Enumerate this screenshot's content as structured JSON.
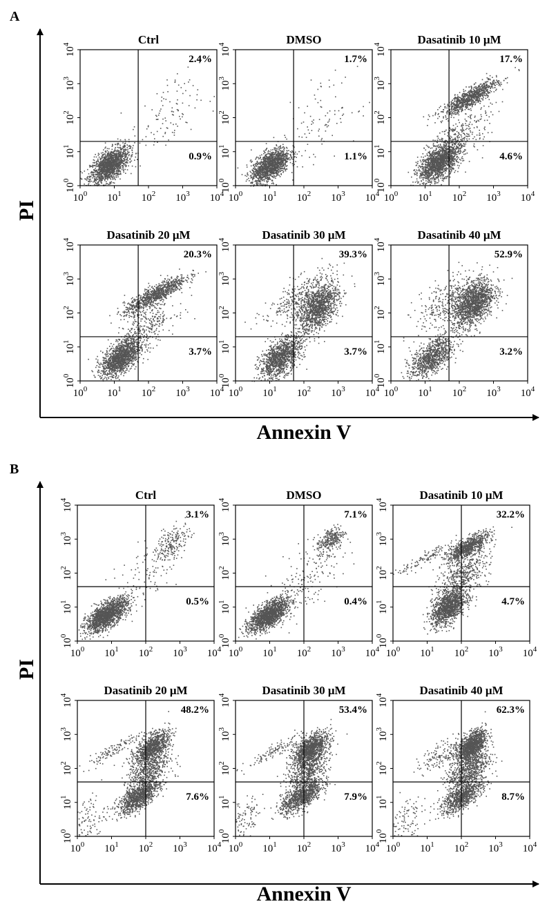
{
  "figure": {
    "panels": [
      {
        "letter": "A",
        "ylabel": "PI",
        "xlabel": "Annexin V",
        "plots": [
          {
            "title": "Ctrl",
            "upper_right": "2.4%",
            "lower_right": "0.9%"
          },
          {
            "title": "DMSO",
            "upper_right": "1.7%",
            "lower_right": "1.1%"
          },
          {
            "title": "Dasatinib 10 μM",
            "upper_right": "17.%",
            "lower_right": "4.6%"
          },
          {
            "title": "Dasatinib 20 μM",
            "upper_right": "20.3%",
            "lower_right": "3.7%"
          },
          {
            "title": "Dasatinib 30 μM",
            "upper_right": "39.3%",
            "lower_right": "3.7%"
          },
          {
            "title": "Dasatinib 40 μM",
            "upper_right": "52.9%",
            "lower_right": "3.2%"
          }
        ]
      },
      {
        "letter": "B",
        "ylabel": "PI",
        "xlabel": "Annexin V",
        "plots": [
          {
            "title": "Ctrl",
            "upper_right": "3.1%",
            "lower_right": "0.5%"
          },
          {
            "title": "DMSO",
            "upper_right": "7.1%",
            "lower_right": "0.4%"
          },
          {
            "title": "Dasatinib 10 μM",
            "upper_right": "32.2%",
            "lower_right": "4.7%"
          },
          {
            "title": "Dasatinib 20 μM",
            "upper_right": "48.2%",
            "lower_right": "7.6%"
          },
          {
            "title": "Dasatinib 30 μM",
            "upper_right": "53.4%",
            "lower_right": "7.9%"
          },
          {
            "title": "Dasatinib 40 μM",
            "upper_right": "62.3%",
            "lower_right": "8.7%"
          }
        ]
      }
    ]
  },
  "chart_data": [
    {
      "type": "scatter",
      "panel": "A",
      "title": "Ctrl",
      "x_scale": "log",
      "y_scale": "log",
      "xlim": [
        1,
        10000
      ],
      "ylim": [
        1,
        10000
      ],
      "x_ticks": [
        "10^0",
        "10^1",
        "10^2",
        "10^3",
        "10^4"
      ],
      "y_ticks": [
        "10^0",
        "10^1",
        "10^2",
        "10^3",
        "10^4"
      ],
      "quadrant_gate": {
        "x": 50,
        "y": 20
      },
      "upper_right_percent": 2.4,
      "lower_right_percent": 0.9,
      "clusters": [
        {
          "center": [
            7,
            4
          ],
          "spread": [
            0.28,
            0.25
          ],
          "n": 1500
        },
        {
          "center": [
            300,
            100
          ],
          "spread": [
            0.5,
            0.6
          ],
          "n": 110
        }
      ],
      "dot_color": "#555555"
    },
    {
      "type": "scatter",
      "panel": "A",
      "title": "DMSO",
      "x_scale": "log",
      "y_scale": "log",
      "xlim": [
        1,
        10000
      ],
      "ylim": [
        1,
        10000
      ],
      "x_ticks": [
        "10^0",
        "10^1",
        "10^2",
        "10^3",
        "10^4"
      ],
      "y_ticks": [
        "10^0",
        "10^1",
        "10^2",
        "10^3",
        "10^4"
      ],
      "quadrant_gate": {
        "x": 50,
        "y": 20
      },
      "upper_right_percent": 1.7,
      "lower_right_percent": 1.1,
      "clusters": [
        {
          "center": [
            10,
            4
          ],
          "spread": [
            0.28,
            0.24
          ],
          "n": 1400
        },
        {
          "center": [
            300,
            80
          ],
          "spread": [
            0.55,
            0.6
          ],
          "n": 100
        }
      ],
      "dot_color": "#555555"
    },
    {
      "type": "scatter",
      "panel": "A",
      "title": "Dasatinib 10 μM",
      "x_scale": "log",
      "y_scale": "log",
      "xlim": [
        1,
        10000
      ],
      "ylim": [
        1,
        10000
      ],
      "x_ticks": [
        "10^0",
        "10^1",
        "10^2",
        "10^3",
        "10^4"
      ],
      "y_ticks": [
        "10^0",
        "10^1",
        "10^2",
        "10^3",
        "10^4"
      ],
      "quadrant_gate": {
        "x": 50,
        "y": 20
      },
      "upper_right_percent": 17.0,
      "lower_right_percent": 4.6,
      "clusters": [
        {
          "center": [
            25,
            5
          ],
          "spread": [
            0.3,
            0.26
          ],
          "n": 1500
        },
        {
          "center": [
            200,
            400
          ],
          "spread": [
            0.4,
            0.15
          ],
          "n": 900
        },
        {
          "center": [
            100,
            30
          ],
          "spread": [
            0.45,
            0.4
          ],
          "n": 300
        }
      ],
      "dot_color": "#555555"
    },
    {
      "type": "scatter",
      "panel": "A",
      "title": "Dasatinib 20 μM",
      "x_scale": "log",
      "y_scale": "log",
      "xlim": [
        1,
        10000
      ],
      "ylim": [
        1,
        10000
      ],
      "x_ticks": [
        "10^0",
        "10^1",
        "10^2",
        "10^3",
        "10^4"
      ],
      "y_ticks": [
        "10^0",
        "10^1",
        "10^2",
        "10^3",
        "10^4"
      ],
      "quadrant_gate": {
        "x": 50,
        "y": 20
      },
      "upper_right_percent": 20.3,
      "lower_right_percent": 3.7,
      "clusters": [
        {
          "center": [
            15,
            5
          ],
          "spread": [
            0.28,
            0.25
          ],
          "n": 1400
        },
        {
          "center": [
            150,
            350
          ],
          "spread": [
            0.45,
            0.15
          ],
          "n": 900
        },
        {
          "center": [
            80,
            40
          ],
          "spread": [
            0.45,
            0.35
          ],
          "n": 300
        }
      ],
      "dot_color": "#555555"
    },
    {
      "type": "scatter",
      "panel": "A",
      "title": "Dasatinib 30 μM",
      "x_scale": "log",
      "y_scale": "log",
      "xlim": [
        1,
        10000
      ],
      "ylim": [
        1,
        10000
      ],
      "x_ticks": [
        "10^0",
        "10^1",
        "10^2",
        "10^3",
        "10^4"
      ],
      "y_ticks": [
        "10^0",
        "10^1",
        "10^2",
        "10^3",
        "10^4"
      ],
      "quadrant_gate": {
        "x": 50,
        "y": 20
      },
      "upper_right_percent": 39.3,
      "lower_right_percent": 3.7,
      "clusters": [
        {
          "center": [
            20,
            5
          ],
          "spread": [
            0.3,
            0.28
          ],
          "n": 1200
        },
        {
          "center": [
            250,
            150
          ],
          "spread": [
            0.3,
            0.35
          ],
          "n": 1300
        },
        {
          "center": [
            60,
            300
          ],
          "spread": [
            0.5,
            0.3
          ],
          "n": 250
        }
      ],
      "dot_color": "#555555"
    },
    {
      "type": "scatter",
      "panel": "A",
      "title": "Dasatinib 40 μM",
      "x_scale": "log",
      "y_scale": "log",
      "xlim": [
        1,
        10000
      ],
      "ylim": [
        1,
        10000
      ],
      "x_ticks": [
        "10^0",
        "10^1",
        "10^2",
        "10^3",
        "10^4"
      ],
      "y_ticks": [
        "10^0",
        "10^1",
        "10^2",
        "10^3",
        "10^4"
      ],
      "quadrant_gate": {
        "x": 50,
        "y": 20
      },
      "upper_right_percent": 52.9,
      "lower_right_percent": 3.2,
      "clusters": [
        {
          "center": [
            15,
            5
          ],
          "spread": [
            0.3,
            0.26
          ],
          "n": 900
        },
        {
          "center": [
            250,
            200
          ],
          "spread": [
            0.3,
            0.35
          ],
          "n": 1500
        },
        {
          "center": [
            40,
            200
          ],
          "spread": [
            0.45,
            0.4
          ],
          "n": 300
        }
      ],
      "dot_color": "#555555"
    },
    {
      "type": "scatter",
      "panel": "B",
      "title": "Ctrl",
      "x_scale": "log",
      "y_scale": "log",
      "xlim": [
        1,
        10000
      ],
      "ylim": [
        1,
        10000
      ],
      "x_ticks": [
        "10^0",
        "10^1",
        "10^2",
        "10^3",
        "10^4"
      ],
      "y_ticks": [
        "10^0",
        "10^1",
        "10^2",
        "10^3",
        "10^4"
      ],
      "quadrant_gate": {
        "x": 100,
        "y": 40
      },
      "upper_right_percent": 3.1,
      "lower_right_percent": 0.5,
      "clusters": [
        {
          "center": [
            7,
            6
          ],
          "spread": [
            0.3,
            0.2
          ],
          "n": 1600
        },
        {
          "center": [
            600,
            800
          ],
          "spread": [
            0.25,
            0.25
          ],
          "n": 200
        },
        {
          "center": [
            100,
            80
          ],
          "spread": [
            0.5,
            0.5
          ],
          "n": 100
        }
      ],
      "dot_color": "#555555"
    },
    {
      "type": "scatter",
      "panel": "B",
      "title": "DMSO",
      "x_scale": "log",
      "y_scale": "log",
      "xlim": [
        1,
        10000
      ],
      "ylim": [
        1,
        10000
      ],
      "x_ticks": [
        "10^0",
        "10^1",
        "10^2",
        "10^3",
        "10^4"
      ],
      "y_ticks": [
        "10^0",
        "10^1",
        "10^2",
        "10^3",
        "10^4"
      ],
      "quadrant_gate": {
        "x": 100,
        "y": 40
      },
      "upper_right_percent": 7.1,
      "lower_right_percent": 0.4,
      "clusters": [
        {
          "center": [
            9,
            6
          ],
          "spread": [
            0.28,
            0.2
          ],
          "n": 1500
        },
        {
          "center": [
            600,
            1000
          ],
          "spread": [
            0.2,
            0.2
          ],
          "n": 280
        },
        {
          "center": [
            120,
            80
          ],
          "spread": [
            0.5,
            0.5
          ],
          "n": 150
        }
      ],
      "dot_color": "#555555"
    },
    {
      "type": "scatter",
      "panel": "B",
      "title": "Dasatinib 10 μM",
      "x_scale": "log",
      "y_scale": "log",
      "xlim": [
        1,
        10000
      ],
      "ylim": [
        1,
        10000
      ],
      "x_ticks": [
        "10^0",
        "10^1",
        "10^2",
        "10^3",
        "10^4"
      ],
      "y_ticks": [
        "10^0",
        "10^1",
        "10^2",
        "10^3",
        "10^4"
      ],
      "quadrant_gate": {
        "x": 100,
        "y": 40
      },
      "upper_right_percent": 32.2,
      "lower_right_percent": 4.7,
      "clusters": [
        {
          "center": [
            40,
            10
          ],
          "spread": [
            0.25,
            0.25
          ],
          "n": 1200
        },
        {
          "center": [
            150,
            600
          ],
          "spread": [
            0.3,
            0.15
          ],
          "n": 800
        },
        {
          "center": [
            100,
            80
          ],
          "spread": [
            0.4,
            0.35
          ],
          "n": 500
        },
        {
          "center": [
            10,
            300
          ],
          "spread": [
            0.45,
            0.1
          ],
          "n": 120
        }
      ],
      "dot_color": "#555555"
    },
    {
      "type": "scatter",
      "panel": "B",
      "title": "Dasatinib 20 μM",
      "x_scale": "log",
      "y_scale": "log",
      "xlim": [
        1,
        10000
      ],
      "ylim": [
        1,
        10000
      ],
      "x_ticks": [
        "10^0",
        "10^1",
        "10^2",
        "10^3",
        "10^4"
      ],
      "y_ticks": [
        "10^0",
        "10^1",
        "10^2",
        "10^3",
        "10^4"
      ],
      "quadrant_gate": {
        "x": 100,
        "y": 40
      },
      "upper_right_percent": 48.2,
      "lower_right_percent": 7.6,
      "clusters": [
        {
          "center": [
            60,
            15
          ],
          "spread": [
            0.3,
            0.2
          ],
          "n": 1000
        },
        {
          "center": [
            150,
            450
          ],
          "spread": [
            0.25,
            0.2
          ],
          "n": 900
        },
        {
          "center": [
            120,
            100
          ],
          "spread": [
            0.3,
            0.35
          ],
          "n": 600
        },
        {
          "center": [
            10,
            350
          ],
          "spread": [
            0.45,
            0.1
          ],
          "n": 120
        },
        {
          "center": [
            2,
            3
          ],
          "spread": [
            0.25,
            0.4
          ],
          "n": 100
        }
      ],
      "dot_color": "#555555"
    },
    {
      "type": "scatter",
      "panel": "B",
      "title": "Dasatinib 30 μM",
      "x_scale": "log",
      "y_scale": "log",
      "xlim": [
        1,
        10000
      ],
      "ylim": [
        1,
        10000
      ],
      "x_ticks": [
        "10^0",
        "10^1",
        "10^2",
        "10^3",
        "10^4"
      ],
      "y_ticks": [
        "10^0",
        "10^1",
        "10^2",
        "10^3",
        "10^4"
      ],
      "quadrant_gate": {
        "x": 100,
        "y": 40
      },
      "upper_right_percent": 53.4,
      "lower_right_percent": 7.9,
      "clusters": [
        {
          "center": [
            80,
            15
          ],
          "spread": [
            0.3,
            0.2
          ],
          "n": 900
        },
        {
          "center": [
            150,
            400
          ],
          "spread": [
            0.25,
            0.2
          ],
          "n": 1000
        },
        {
          "center": [
            130,
            100
          ],
          "spread": [
            0.3,
            0.35
          ],
          "n": 700
        },
        {
          "center": [
            15,
            350
          ],
          "spread": [
            0.45,
            0.1
          ],
          "n": 120
        },
        {
          "center": [
            2,
            3
          ],
          "spread": [
            0.25,
            0.4
          ],
          "n": 100
        }
      ],
      "dot_color": "#555555"
    },
    {
      "type": "scatter",
      "panel": "B",
      "title": "Dasatinib 40 μM",
      "x_scale": "log",
      "y_scale": "log",
      "xlim": [
        1,
        10000
      ],
      "ylim": [
        1,
        10000
      ],
      "x_ticks": [
        "10^0",
        "10^1",
        "10^2",
        "10^3",
        "10^4"
      ],
      "y_ticks": [
        "10^0",
        "10^1",
        "10^2",
        "10^3",
        "10^4"
      ],
      "quadrant_gate": {
        "x": 100,
        "y": 40
      },
      "upper_right_percent": 62.3,
      "lower_right_percent": 8.7,
      "clusters": [
        {
          "center": [
            100,
            15
          ],
          "spread": [
            0.3,
            0.2
          ],
          "n": 800
        },
        {
          "center": [
            200,
            500
          ],
          "spread": [
            0.2,
            0.2
          ],
          "n": 1100
        },
        {
          "center": [
            150,
            100
          ],
          "spread": [
            0.3,
            0.35
          ],
          "n": 800
        },
        {
          "center": [
            30,
            300
          ],
          "spread": [
            0.4,
            0.2
          ],
          "n": 150
        },
        {
          "center": [
            2,
            3
          ],
          "spread": [
            0.25,
            0.4
          ],
          "n": 100
        }
      ],
      "dot_color": "#555555"
    }
  ]
}
